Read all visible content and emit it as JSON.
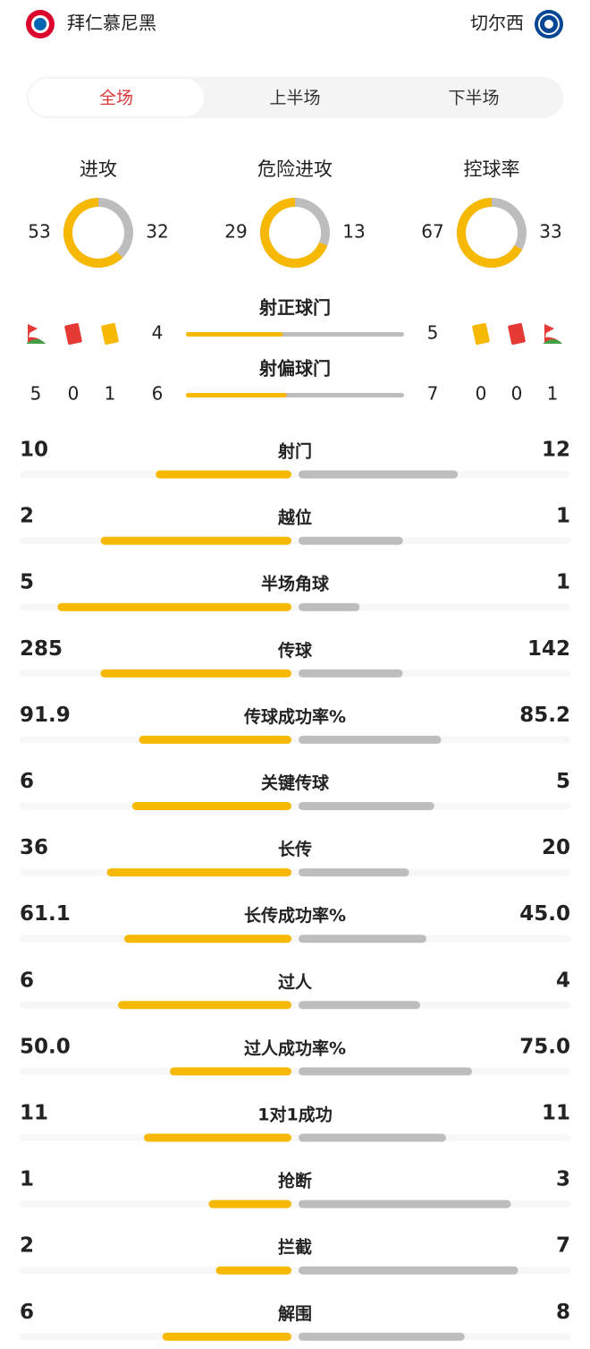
{
  "header": {
    "home": "拜仁慕尼黑",
    "away": "切尔西"
  },
  "tabs": [
    "全场",
    "上半场",
    "下半场"
  ],
  "donuts": [
    {
      "label": "进攻",
      "home": 53,
      "away": 32
    },
    {
      "label": "危险进攻",
      "home": 29,
      "away": 13
    },
    {
      "label": "控球率",
      "home": 67,
      "away": 33
    }
  ],
  "shots": [
    {
      "label": "射正球门",
      "home": 4,
      "away": 5
    },
    {
      "label": "射偏球门",
      "home": 6,
      "away": 7
    }
  ],
  "discipline": {
    "home": {
      "corners": 5,
      "red": 0,
      "yellow": 1
    },
    "away": {
      "yellow": 0,
      "red": 0,
      "corners": 1
    }
  },
  "stats": [
    {
      "label": "射门",
      "home": 10,
      "away": 12
    },
    {
      "label": "越位",
      "home": 2,
      "away": 1
    },
    {
      "label": "半场角球",
      "home": 5,
      "away": 1
    },
    {
      "label": "传球",
      "home": 285,
      "away": 142
    },
    {
      "label": "传球成功率%",
      "home": 91.9,
      "away": 85.2
    },
    {
      "label": "关键传球",
      "home": 6,
      "away": 5
    },
    {
      "label": "长传",
      "home": 36,
      "away": 20
    },
    {
      "label": "长传成功率%",
      "home": 61.1,
      "away": 45,
      "away_label": "45.0"
    },
    {
      "label": "过人",
      "home": 6,
      "away": 4
    },
    {
      "label": "过人成功率%",
      "home": 50,
      "away": 75,
      "home_label": "50.0",
      "away_label": "75.0"
    },
    {
      "label": "1对1成功",
      "home": 11,
      "away": 11
    },
    {
      "label": "抢断",
      "home": 1,
      "away": 3
    },
    {
      "label": "拦截",
      "home": 2,
      "away": 7
    },
    {
      "label": "解围",
      "home": 6,
      "away": 8
    }
  ]
}
